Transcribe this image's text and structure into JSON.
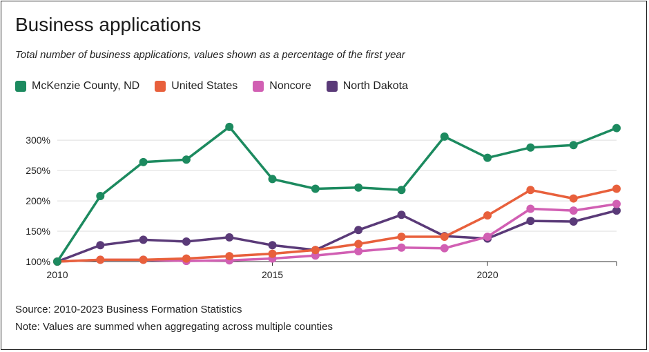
{
  "title": "Business applications",
  "subtitle": "Total number of business applications, values shown as a percentage of the first year",
  "source": "Source: 2010-2023 Business Formation Statistics",
  "note": "Note: Values are summed when aggregating across multiple counties",
  "chart_data": {
    "type": "line",
    "x": [
      2010,
      2011,
      2012,
      2013,
      2014,
      2015,
      2016,
      2017,
      2018,
      2019,
      2020,
      2021,
      2022,
      2023
    ],
    "x_ticks": [
      2010,
      2015,
      2020
    ],
    "x_tick_labels": [
      "2010",
      "2015",
      "2020"
    ],
    "y_ticks": [
      100,
      150,
      200,
      250,
      300
    ],
    "y_tick_labels": [
      "100%",
      "150%",
      "200%",
      "250%",
      "300%"
    ],
    "ylim": [
      100,
      340
    ],
    "xlim": [
      2010,
      2023
    ],
    "grid": "horizontal",
    "legend": "top-left",
    "series": [
      {
        "name": "McKenzie County, ND",
        "color": "#1c8a5f",
        "values": [
          100,
          208,
          264,
          268,
          322,
          236,
          220,
          222,
          218,
          306,
          271,
          288,
          292,
          320
        ]
      },
      {
        "name": "United States",
        "color": "#e8603c",
        "values": [
          100,
          103,
          103,
          105,
          109,
          113,
          119,
          129,
          141,
          141,
          176,
          218,
          204,
          220
        ]
      },
      {
        "name": "Noncore",
        "color": "#d15fb3",
        "values": [
          100,
          103,
          103,
          101,
          102,
          105,
          110,
          117,
          123,
          122,
          141,
          187,
          184,
          195
        ]
      },
      {
        "name": "North Dakota",
        "color": "#5a3a78",
        "values": [
          100,
          127,
          136,
          133,
          140,
          127,
          119,
          152,
          177,
          142,
          138,
          167,
          166,
          184
        ]
      }
    ]
  }
}
